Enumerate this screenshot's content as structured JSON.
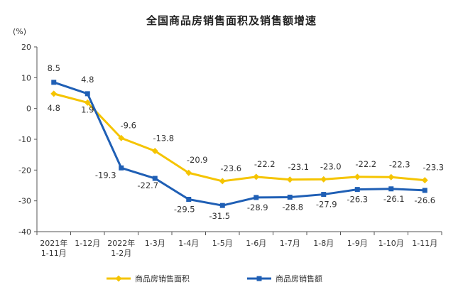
{
  "chart_data": {
    "type": "line",
    "title": "全国商品房销售面积及销售额增速",
    "ylabel": "(%)",
    "ylim": [
      -40,
      20
    ],
    "yticks": [
      20,
      10,
      0,
      -10,
      -20,
      -30,
      -40
    ],
    "categories": [
      [
        "2021年",
        "1-11月"
      ],
      [
        "1-12月"
      ],
      [
        "2022年",
        "1-2月"
      ],
      [
        "1-3月"
      ],
      [
        "1-4月"
      ],
      [
        "1-5月"
      ],
      [
        "1-6月"
      ],
      [
        "1-7月"
      ],
      [
        "1-8月"
      ],
      [
        "1-9月"
      ],
      [
        "1-10月"
      ],
      [
        "1-11月"
      ]
    ],
    "series": [
      {
        "name": "商品房销售面积",
        "color": "#f5c400",
        "marker": "diamond",
        "values": [
          4.8,
          1.9,
          -9.6,
          -13.8,
          -20.9,
          -23.6,
          -22.2,
          -23.1,
          -23.0,
          -22.2,
          -22.3,
          -23.3
        ],
        "labels": [
          "4.8",
          "1.9",
          "-9.6",
          "-13.8",
          "-20.9",
          "-23.6",
          "-22.2",
          "-23.1",
          "-23.0",
          "-22.2",
          "-22.3",
          "-23.3"
        ]
      },
      {
        "name": "商品房销售额",
        "color": "#1f5fb5",
        "marker": "square",
        "values": [
          8.5,
          4.8,
          -19.3,
          -22.7,
          -29.5,
          -31.5,
          -28.9,
          -28.8,
          -27.9,
          -26.3,
          -26.1,
          -26.6
        ],
        "labels": [
          "8.5",
          "4.8",
          "-19.3",
          "-22.7",
          "-29.5",
          "-31.5",
          "-28.9",
          "-28.8",
          "-27.9",
          "-26.3",
          "-26.1",
          "-26.6"
        ]
      }
    ],
    "grid": false,
    "legend_position": "bottom"
  }
}
